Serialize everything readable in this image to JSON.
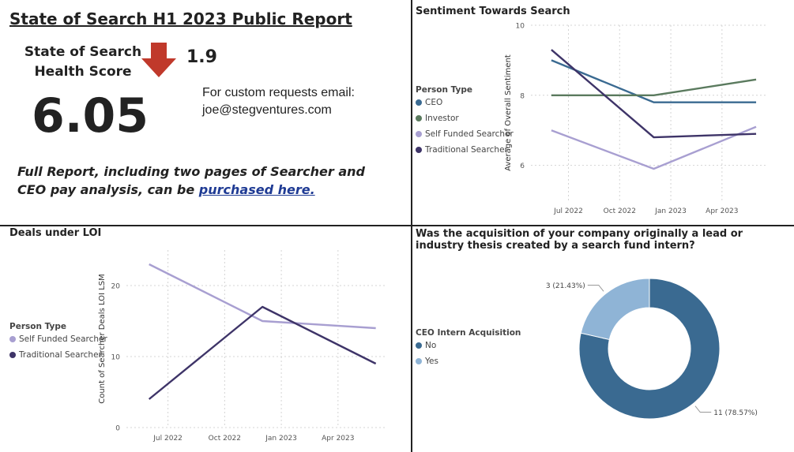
{
  "report": {
    "title": "State of Search H1 2023 Public Report",
    "score_label": "State of Search Health Score",
    "score_change": "1.9",
    "score_change_direction": "down",
    "score_value": "6.05",
    "email_line1": "For custom requests email:",
    "email_line2": "joe@stegventures.com",
    "full_report_text": "Full Report, including two pages of Searcher and CEO pay analysis, can be ",
    "full_report_link": "purchased here.",
    "arrow_color": "#c0392b"
  },
  "chart_data": [
    {
      "type": "line",
      "title": "Sentiment Towards Search",
      "xlabel": "",
      "ylabel": "Average of Overall Sentiment",
      "x": [
        "2022-06",
        "2022-12",
        "2023-06"
      ],
      "x_ticks": [
        "Jul 2022",
        "Oct 2022",
        "Jan 2023",
        "Apr 2023"
      ],
      "ylim": [
        5,
        10
      ],
      "y_ticks": [
        6,
        8,
        10
      ],
      "grid": true,
      "legend_title": "Person Type",
      "legend_position": "left",
      "series": [
        {
          "name": "CEO",
          "color": "#3a6a91",
          "values": [
            9.0,
            7.8,
            7.8
          ]
        },
        {
          "name": "Investor",
          "color": "#5a7a5e",
          "values": [
            8.0,
            8.0,
            8.45
          ]
        },
        {
          "name": "Self Funded Searcher",
          "color": "#a89fd1",
          "values": [
            7.0,
            5.9,
            7.1
          ]
        },
        {
          "name": "Traditional Searcher",
          "color": "#3e3468",
          "values": [
            9.3,
            6.8,
            6.9
          ]
        }
      ]
    },
    {
      "type": "line",
      "title": "Deals under LOI",
      "xlabel": "",
      "ylabel": "Count of Searcher Deals LOI LSM",
      "x": [
        "2022-06",
        "2022-12",
        "2023-06"
      ],
      "x_ticks": [
        "Jul 2022",
        "Oct 2022",
        "Jan 2023",
        "Apr 2023"
      ],
      "ylim": [
        0,
        25
      ],
      "y_ticks": [
        0,
        10,
        20
      ],
      "grid": true,
      "legend_title": "Person Type",
      "legend_position": "left",
      "series": [
        {
          "name": "Self Funded Searcher",
          "color": "#a89fd1",
          "values": [
            23,
            15,
            14
          ]
        },
        {
          "name": "Traditional Searcher",
          "color": "#3e3468",
          "values": [
            4,
            17,
            9
          ]
        }
      ]
    },
    {
      "type": "pie",
      "title": "Was the acquisition of your company originally a lead or industry thesis created by a search fund intern?",
      "legend_title": "CEO Intern Acquisition",
      "legend_position": "left",
      "donut": true,
      "slices": [
        {
          "label": "No",
          "value": 11,
          "display": "11 (78.57%)",
          "color": "#3a6a91"
        },
        {
          "label": "Yes",
          "value": 3,
          "display": "3 (21.43%)",
          "color": "#8fb4d6"
        }
      ]
    }
  ]
}
